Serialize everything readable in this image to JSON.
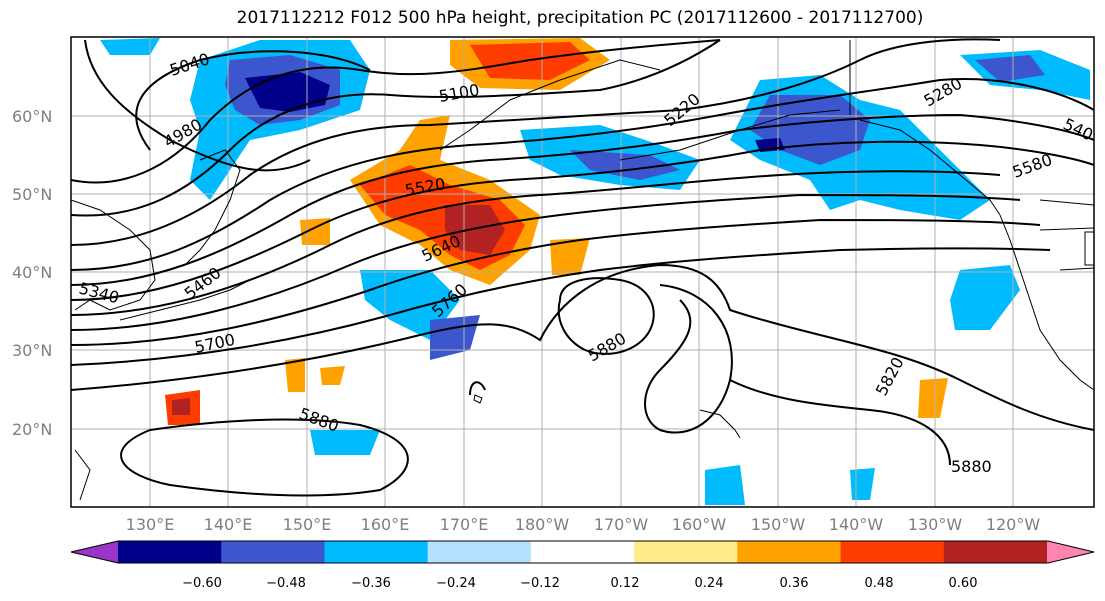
{
  "title": "2017112212 F012 500 hPa height, precipitation PC (2017112600 - 2017112700)",
  "lat_labels": [
    "60°N",
    "50°N",
    "40°N",
    "30°N",
    "20°N"
  ],
  "lon_labels": [
    "130°E",
    "140°E",
    "150°E",
    "160°E",
    "170°E",
    "180°W",
    "170°W",
    "160°W",
    "150°W",
    "140°W",
    "130°W",
    "120°W"
  ],
  "contour_labels": [
    "5040",
    "4980",
    "5100",
    "5220",
    "5280",
    "540",
    "5580",
    "5520",
    "5640",
    "5460",
    "5340",
    "5760",
    "5700",
    "5880",
    "5880",
    "5820",
    "5880"
  ],
  "colorbar": {
    "ticks": [
      "−0.60",
      "−0.48",
      "−0.36",
      "−0.24",
      "−0.12",
      "0.12",
      "0.24",
      "0.36",
      "0.48",
      "0.60"
    ],
    "colors": [
      "#9a35c8",
      "#00008b",
      "#3c56cd",
      "#00bcff",
      "#b3e1ff",
      "#ffffff",
      "#ffeb8a",
      "#ffa200",
      "#ff3c00",
      "#b22222",
      "#ff85b0"
    ]
  },
  "colors": {
    "frame": "#000000",
    "grid": "#b0b0b0",
    "contour": "#000000"
  }
}
